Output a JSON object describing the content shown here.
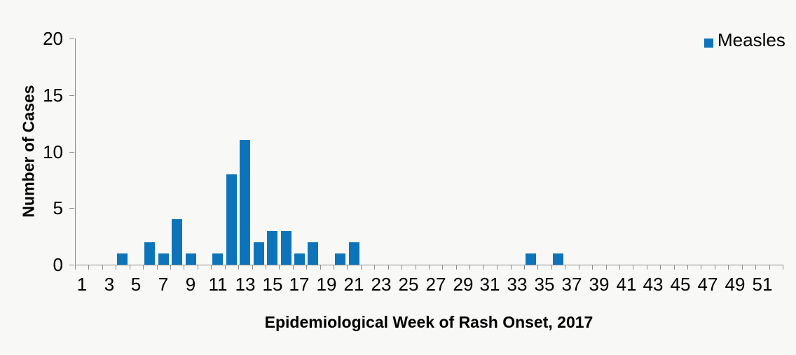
{
  "colors": {
    "background": "#F8F8F6",
    "axis": "#8C8C8C",
    "text": "#000000",
    "bar": "#0E74BA"
  },
  "chart_data": {
    "type": "bar",
    "title": "",
    "xlabel": "Epidemiological Week of Rash Onset, 2017",
    "ylabel": "Number of Cases",
    "grid": false,
    "legend": {
      "position": "top-right",
      "entries": [
        {
          "label": "Measles",
          "marker": "square",
          "color": "#0E74BA"
        }
      ]
    },
    "x_axis": {
      "weeks": 52,
      "tick_every_week": true,
      "label_weeks": [
        1,
        3,
        5,
        7,
        9,
        11,
        13,
        15,
        17,
        19,
        21,
        23,
        25,
        27,
        29,
        31,
        33,
        35,
        37,
        39,
        41,
        43,
        45,
        47,
        49,
        51
      ]
    },
    "y_axis": {
      "min": 0,
      "max": 20,
      "ticks": [
        0,
        5,
        10,
        15,
        20
      ]
    },
    "series": [
      {
        "name": "Measles",
        "color": "#0E74BA",
        "values_by_week": [
          0,
          0,
          0,
          1,
          0,
          2,
          1,
          4,
          1,
          0,
          1,
          8,
          11,
          2,
          3,
          3,
          1,
          2,
          0,
          1,
          2,
          0,
          0,
          0,
          0,
          0,
          0,
          0,
          0,
          0,
          0,
          0,
          0,
          1,
          0,
          1,
          0,
          0,
          0,
          0,
          0,
          0,
          0,
          0,
          0,
          0,
          0,
          0,
          0,
          0,
          0,
          0
        ],
        "nonzero_points": {
          "4": 1,
          "6": 2,
          "7": 1,
          "8": 4,
          "9": 1,
          "11": 1,
          "12": 8,
          "13": 11,
          "14": 2,
          "15": 3,
          "16": 3,
          "17": 1,
          "18": 2,
          "20": 1,
          "21": 2,
          "34": 1,
          "36": 1
        }
      }
    ]
  }
}
